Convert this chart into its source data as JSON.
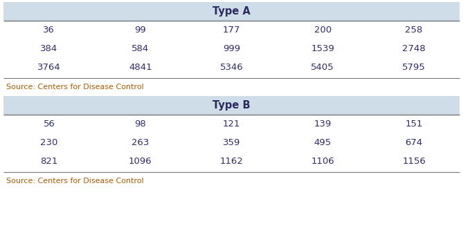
{
  "type_a_header": "Type A",
  "type_b_header": "Type B",
  "type_a_rows": [
    [
      "36",
      "99",
      "177",
      "200",
      "258"
    ],
    [
      "384",
      "584",
      "999",
      "1539",
      "2748"
    ],
    [
      "3764",
      "4841",
      "5346",
      "5405",
      "5795"
    ]
  ],
  "type_b_rows": [
    [
      "56",
      "98",
      "121",
      "139",
      "151"
    ],
    [
      "230",
      "263",
      "359",
      "495",
      "674"
    ],
    [
      "821",
      "1096",
      "1162",
      "1106",
      "1156"
    ]
  ],
  "source_text": "Source: Centers for Disease Control",
  "header_bg_color": "#cfdde8",
  "header_text_color": "#2b2b5e",
  "data_text_color": "#2c2c6e",
  "source_text_color": "#b05a00",
  "bg_color": "#ffffff",
  "line_color": "#888888",
  "header_fontsize": 10.5,
  "data_fontsize": 9.5,
  "source_fontsize": 8.0
}
